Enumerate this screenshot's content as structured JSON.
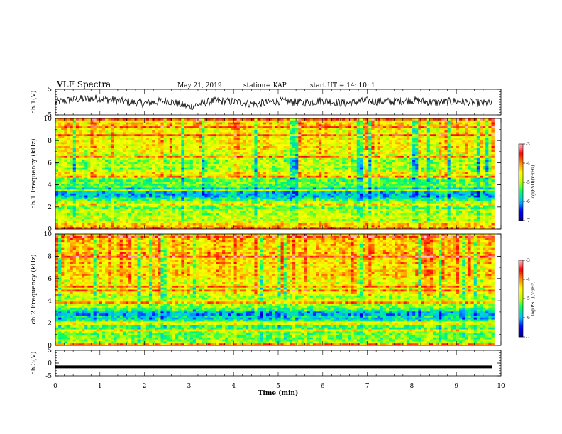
{
  "header": {
    "title": "VLF Spectra",
    "date": "May 21, 2019",
    "station": "station= KAP",
    "start": "start  UT =   14: 10: 1"
  },
  "colors": {
    "colormap": [
      "#00008b",
      "#0000ff",
      "#00bfff",
      "#00ff66",
      "#bfff00",
      "#ffff00",
      "#ff8c00",
      "#ff0000",
      "#ffc0cb"
    ],
    "trace": "#000000",
    "axis": "#000000"
  },
  "chart_data": [
    {
      "type": "line",
      "panel": "ch1-waveform",
      "ylabel": "ch.1(V)",
      "ylim": [
        -5,
        5
      ],
      "y_ticks": [
        {
          "v": 5,
          "label": "5"
        },
        {
          "v": -5,
          "label": "-5"
        }
      ],
      "xlim": [
        0,
        10
      ],
      "series": [
        {
          "x": [
            0,
            0.5,
            1,
            1.5,
            2,
            2.5,
            3,
            3.5,
            4,
            4.5,
            5,
            5.5,
            6,
            6.5,
            7,
            7.5,
            8,
            8.5,
            9,
            9.5,
            9.8
          ],
          "values": [
            0,
            1.2,
            1.5,
            0.3,
            -0.5,
            0.6,
            -1.8,
            0.4,
            0.2,
            -0.8,
            0.5,
            -0.3,
            0.6,
            -0.5,
            0.5,
            0.2,
            0.8,
            -0.2,
            0.4,
            -0.4,
            -0.6
          ]
        }
      ]
    },
    {
      "type": "heatmap",
      "panel": "ch1-spectrogram",
      "ylabel": "ch.1 Frequency (kHz)",
      "ylim": [
        0,
        10
      ],
      "y_ticks": [
        {
          "v": 0,
          "label": "0"
        },
        {
          "v": 2,
          "label": "2"
        },
        {
          "v": 4,
          "label": "4"
        },
        {
          "v": 6,
          "label": "6"
        },
        {
          "v": 8,
          "label": "8"
        },
        {
          "v": 10,
          "label": "10"
        }
      ],
      "xlim": [
        0,
        10
      ],
      "data_x_max": 9.85,
      "colorbar": {
        "label": "log(PSD)(V²/Hz)",
        "range": [
          -7,
          -3
        ],
        "ticks": [
          {
            "v": -3,
            "label": "-3"
          },
          {
            "v": -4,
            "label": "-4"
          },
          {
            "v": -5,
            "label": "-5"
          },
          {
            "v": -6,
            "label": "-6"
          },
          {
            "v": -7,
            "label": "-7"
          }
        ]
      },
      "level_profile": {
        "freq_khz": [
          0,
          0.5,
          1.0,
          1.5,
          2.0,
          2.5,
          3.0,
          3.5,
          4.0,
          4.5,
          5.0,
          5.5,
          6.0,
          6.5,
          7.0,
          8.0,
          9.0,
          10.0
        ],
        "log_psd": [
          -3.6,
          -4.6,
          -5.0,
          -5.0,
          -5.3,
          -5.1,
          -5.9,
          -5.8,
          -5.2,
          -5.3,
          -4.3,
          -5.2,
          -5.0,
          -4.8,
          -4.7,
          -4.5,
          -4.5,
          -4.5
        ]
      }
    },
    {
      "type": "heatmap",
      "panel": "ch2-spectrogram",
      "ylabel": "ch.2 Frequency (kHz)",
      "ylim": [
        0,
        10
      ],
      "y_ticks": [
        {
          "v": 0,
          "label": "0"
        },
        {
          "v": 2,
          "label": "2"
        },
        {
          "v": 4,
          "label": "4"
        },
        {
          "v": 6,
          "label": "6"
        },
        {
          "v": 8,
          "label": "8"
        },
        {
          "v": 10,
          "label": "10"
        }
      ],
      "xlim": [
        0,
        10
      ],
      "data_x_max": 9.85,
      "colorbar": {
        "label": "log(PSD)(V²/Hz)",
        "range": [
          -7,
          -3
        ],
        "ticks": [
          {
            "v": -3,
            "label": "-3"
          },
          {
            "v": -4,
            "label": "-4"
          },
          {
            "v": -5,
            "label": "-5"
          },
          {
            "v": -6,
            "label": "-6"
          },
          {
            "v": -7,
            "label": "-7"
          }
        ]
      },
      "level_profile": {
        "freq_khz": [
          0,
          0.5,
          1.0,
          1.5,
          2.0,
          2.5,
          3.0,
          3.5,
          4.0,
          4.5,
          5.0,
          5.5,
          6.0,
          6.5,
          7.0,
          8.0,
          9.0,
          10.0
        ],
        "log_psd": [
          -4.8,
          -5.0,
          -5.2,
          -5.4,
          -5.5,
          -5.9,
          -6.0,
          -4.9,
          -4.9,
          -4.9,
          -4.7,
          -4.8,
          -4.4,
          -4.5,
          -4.5,
          -4.3,
          -4.3,
          -4.3
        ]
      }
    },
    {
      "type": "line",
      "panel": "ch3-waveform",
      "ylabel": "ch.3(V)",
      "ylim": [
        -5,
        5
      ],
      "y_ticks": [
        {
          "v": 5,
          "label": "5"
        },
        {
          "v": 0,
          "label": "0"
        },
        {
          "v": -5,
          "label": "-5"
        }
      ],
      "xlim": [
        0,
        10
      ],
      "xlabel": "Time  (min)",
      "x_ticks": [
        {
          "v": 0,
          "label": "0"
        },
        {
          "v": 1,
          "label": "1"
        },
        {
          "v": 2,
          "label": "2"
        },
        {
          "v": 3,
          "label": "3"
        },
        {
          "v": 4,
          "label": "4"
        },
        {
          "v": 5,
          "label": "5"
        },
        {
          "v": 6,
          "label": "6"
        },
        {
          "v": 7,
          "label": "7"
        },
        {
          "v": 8,
          "label": "8"
        },
        {
          "v": 9,
          "label": "9"
        },
        {
          "v": 10,
          "label": "10"
        }
      ],
      "series": [
        {
          "x": [
            0,
            9.8
          ],
          "values": [
            -1.5,
            -1.5
          ]
        }
      ]
    }
  ]
}
